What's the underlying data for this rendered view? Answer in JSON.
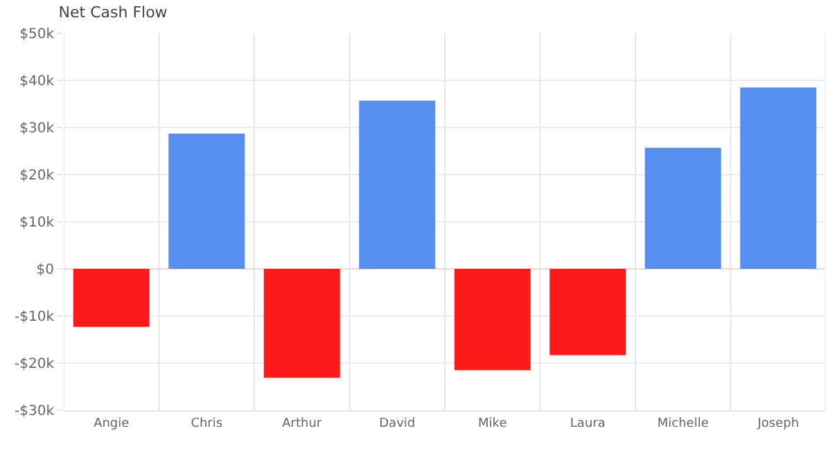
{
  "chart_data": {
    "type": "bar",
    "title": "Net Cash Flow",
    "categories": [
      "Angie",
      "Chris",
      "Arthur",
      "David",
      "Mike",
      "Laura",
      "Michelle",
      "Joseph"
    ],
    "values": [
      -12.3,
      28.7,
      -23.1,
      35.7,
      -21.5,
      -18.3,
      25.7,
      38.5
    ],
    "colors": [
      "#fc1a1a",
      "#5590f0",
      "#fc1a1a",
      "#5590f0",
      "#fc1a1a",
      "#fc1a1a",
      "#5590f0",
      "#5590f0"
    ],
    "ylim": [
      -30,
      50
    ],
    "yticks": [
      {
        "value": -30,
        "label": "-$30k"
      },
      {
        "value": -20,
        "label": "-$20k"
      },
      {
        "value": -10,
        "label": "-$10k"
      },
      {
        "value": 0,
        "label": "$0"
      },
      {
        "value": 10,
        "label": "$10k"
      },
      {
        "value": 20,
        "label": "$20k"
      },
      {
        "value": 30,
        "label": "$30k"
      },
      {
        "value": 40,
        "label": "$40k"
      },
      {
        "value": 50,
        "label": "$50k"
      }
    ],
    "grid": true
  }
}
